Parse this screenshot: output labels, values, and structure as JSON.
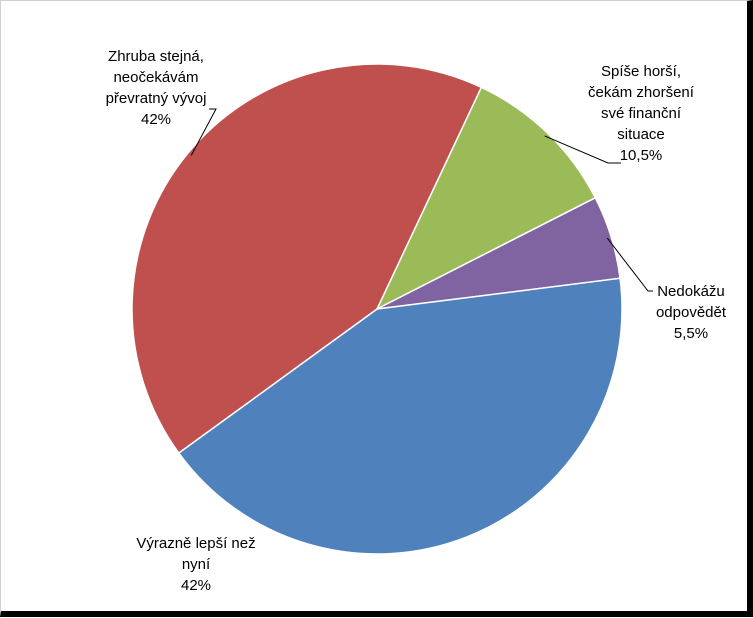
{
  "chart_data": {
    "type": "pie",
    "title": "",
    "start_angle_deg": -64.8,
    "direction": "clockwise",
    "slices": [
      {
        "name": "Spíše horší, čekám zhoršení své finanční situace",
        "value": 10.5,
        "value_label": "10,5%",
        "color": "#9BBB59",
        "label_lines": [
          "Spíše horší,",
          "čekám zhoršení",
          "své finanční",
          "situace",
          "10,5%"
        ]
      },
      {
        "name": "Nedokážu odpovědět",
        "value": 5.5,
        "value_label": "5,5%",
        "color": "#8064A2",
        "label_lines": [
          "Nedokážu",
          "odpovědět",
          "5,5%"
        ]
      },
      {
        "name": "Výrazně lepší než nyní",
        "value": 42,
        "value_label": "42%",
        "color": "#4F81BD",
        "label_lines": [
          "Výrazně lepší než",
          "nyní",
          "42%"
        ]
      },
      {
        "name": "Zhruba stejná, neočekávám převratný vývoj",
        "value": 42,
        "value_label": "42%",
        "color": "#C0504D",
        "label_lines": [
          "Zhruba stejná,",
          "neočekávám",
          "převratný vývoj",
          "42%"
        ]
      }
    ]
  }
}
